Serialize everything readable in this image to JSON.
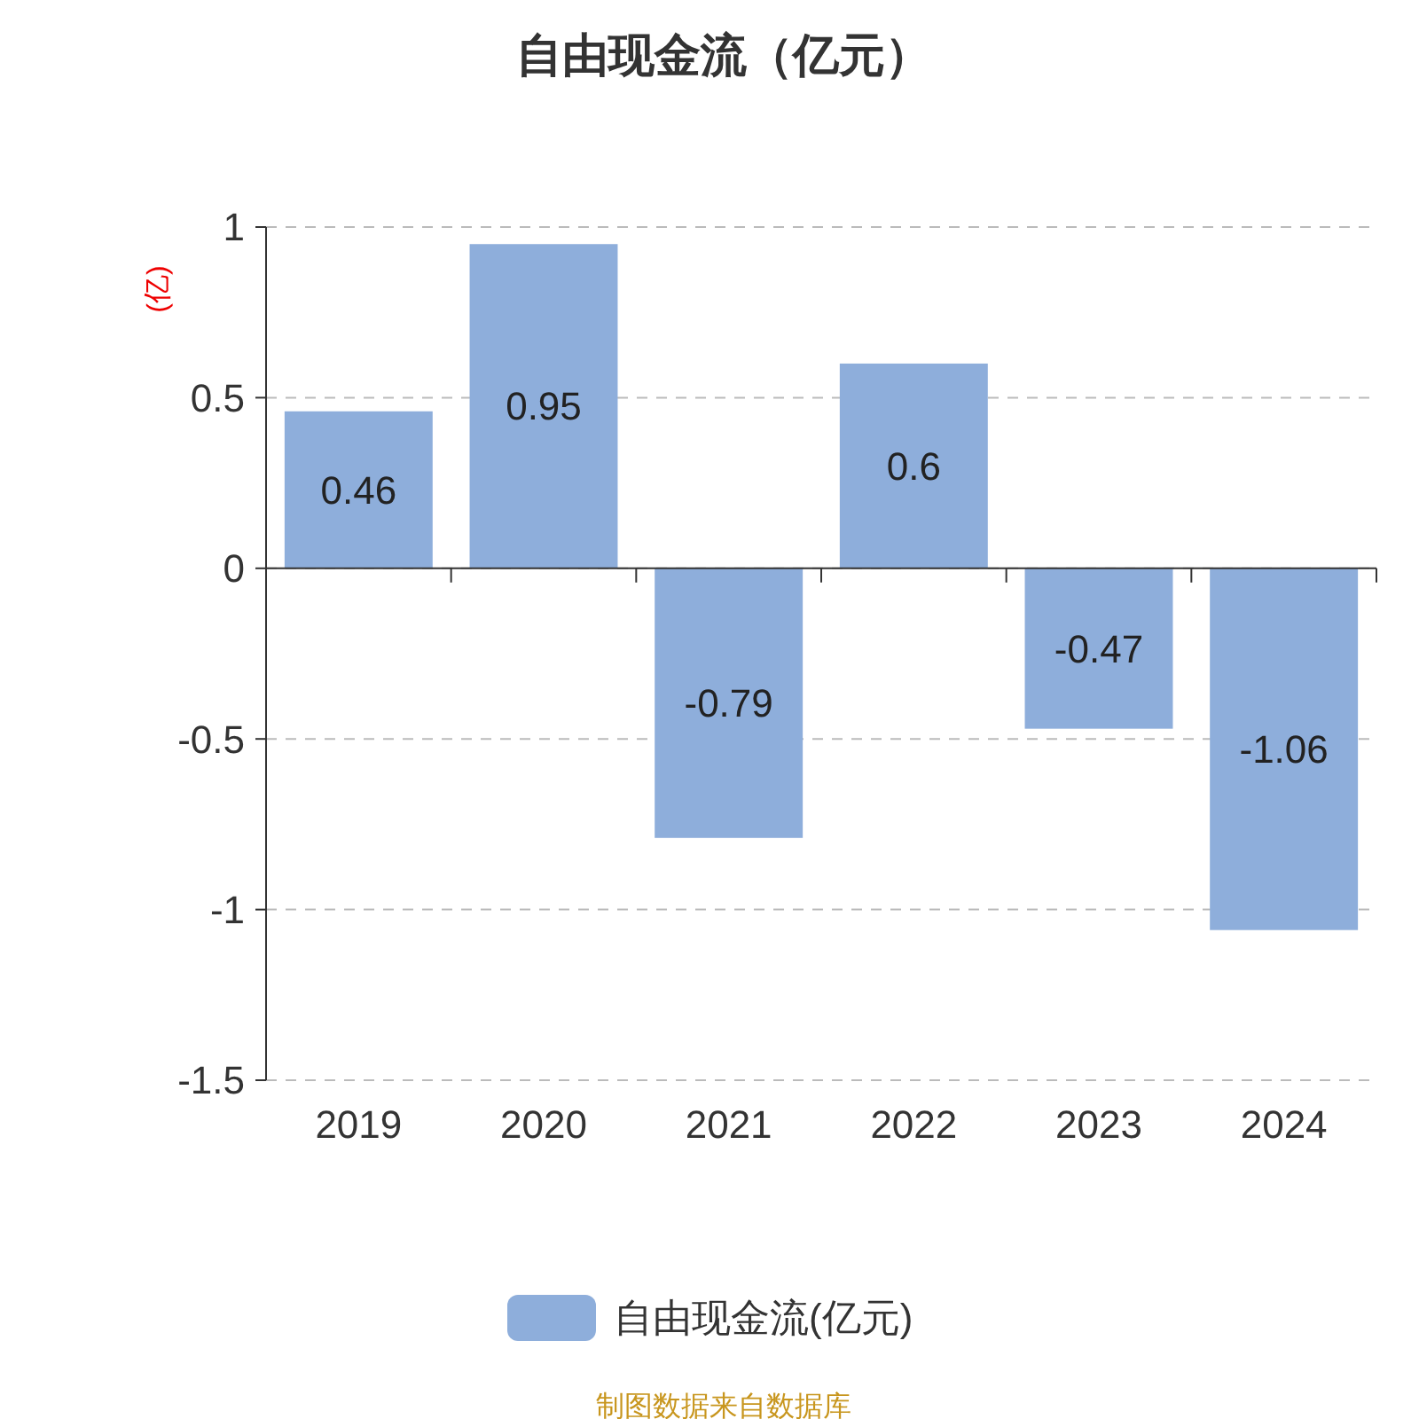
{
  "chart_data": {
    "type": "bar",
    "title": "自由现金流（亿元）",
    "ylabel": "(亿)",
    "categories": [
      "2019",
      "2020",
      "2021",
      "2022",
      "2023",
      "2024"
    ],
    "series": [
      {
        "name": "自由现金流(亿元)",
        "color": "#8eaedb",
        "values": [
          0.46,
          0.95,
          -0.79,
          0.6,
          -0.47,
          -1.06
        ]
      }
    ],
    "ylim": [
      -1.5,
      1
    ],
    "yticks": [
      -1.5,
      -1,
      -0.5,
      0,
      0.5,
      1
    ],
    "grid": "y",
    "legend": "bottom",
    "data_labels": true,
    "annotations": [
      "制图数据来自数据库"
    ]
  }
}
